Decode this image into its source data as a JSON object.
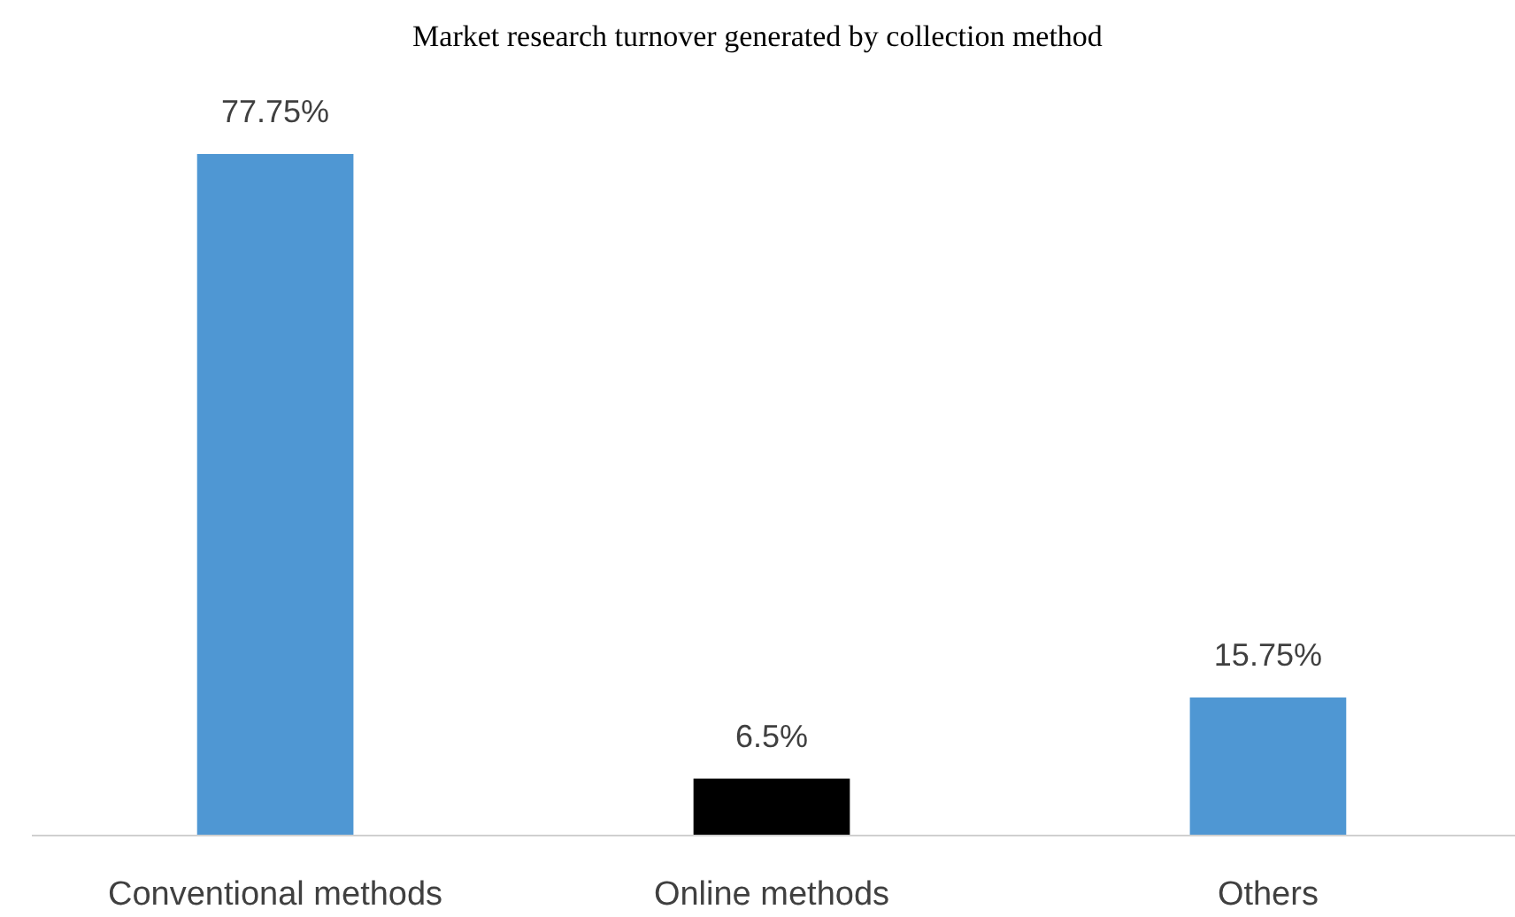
{
  "chart_data": {
    "type": "bar",
    "title": "Market research turnover generated by collection method",
    "categories": [
      "Conventional methods",
      "Online methods",
      "Others"
    ],
    "values": [
      77.75,
      6.5,
      15.75
    ],
    "colors": [
      "#4f97d3",
      "#000000",
      "#4f97d3"
    ],
    "value_labels": [
      "77.75%",
      "6.5%",
      "15.75%"
    ]
  }
}
